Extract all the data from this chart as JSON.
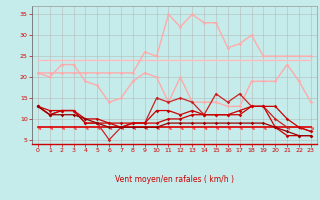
{
  "xlabel": "Vent moyen/en rafales ( km/h )",
  "bg_color": "#c5eceb",
  "grid_color": "#b0b0b0",
  "xlim": [
    -0.5,
    23.5
  ],
  "ylim": [
    4,
    37
  ],
  "yticks": [
    5,
    10,
    15,
    20,
    25,
    30,
    35
  ],
  "xticks": [
    0,
    1,
    2,
    3,
    4,
    5,
    6,
    7,
    8,
    9,
    10,
    11,
    12,
    13,
    14,
    15,
    16,
    17,
    18,
    19,
    20,
    21,
    22,
    23
  ],
  "gust_peak_color": "#ffaaaa",
  "gust_peak_y": [
    21,
    21,
    21,
    21,
    21,
    21,
    21,
    21,
    21,
    26,
    25,
    35,
    32,
    35,
    33,
    33,
    27,
    28,
    30,
    25,
    25,
    25,
    25,
    25
  ],
  "gust_flat_color": "#ffbbbb",
  "gust_flat_y": [
    24,
    24,
    24,
    24,
    24,
    24,
    24,
    24,
    24,
    24,
    24,
    24,
    24,
    24,
    24,
    24,
    24,
    24,
    24,
    24,
    24,
    24,
    24,
    24
  ],
  "gust_wave_color": "#ffaaaa",
  "gust_wave_y": [
    21,
    20,
    23,
    23,
    19,
    18,
    14,
    15,
    19,
    21,
    20,
    14,
    20,
    14,
    14,
    14,
    13,
    13,
    19,
    19,
    19,
    23,
    19,
    14
  ],
  "mean_flat_color": "#dd0000",
  "mean_flat_y": [
    8,
    8,
    8,
    8,
    8,
    8,
    8,
    8,
    8,
    8,
    8,
    8,
    8,
    8,
    8,
    8,
    8,
    8,
    8,
    8,
    8,
    8,
    8,
    8
  ],
  "mean_wave1_color": "#cc2222",
  "mean_wave1_y": [
    13,
    11,
    12,
    12,
    9,
    9,
    5,
    8,
    9,
    9,
    15,
    14,
    15,
    14,
    11,
    16,
    14,
    16,
    13,
    13,
    10,
    8,
    8,
    7
  ],
  "mean_wave2_color": "#cc0000",
  "mean_wave2_y": [
    13,
    11,
    12,
    12,
    9,
    9,
    9,
    8,
    9,
    9,
    12,
    12,
    11,
    12,
    11,
    11,
    11,
    11,
    13,
    13,
    8,
    6,
    6,
    6
  ],
  "mean_wave3_color": "#cc0000",
  "mean_wave3_y": [
    13,
    12,
    12,
    12,
    10,
    10,
    9,
    9,
    9,
    9,
    9,
    10,
    10,
    11,
    11,
    11,
    11,
    12,
    13,
    13,
    13,
    10,
    8,
    7
  ],
  "mean_dark_color": "#990000",
  "mean_dark_y": [
    13,
    11,
    11,
    11,
    10,
    9,
    8,
    8,
    8,
    8,
    8,
    9,
    9,
    9,
    9,
    9,
    9,
    9,
    9,
    9,
    8,
    7,
    6,
    6
  ],
  "arrow_color": "#ff4444"
}
